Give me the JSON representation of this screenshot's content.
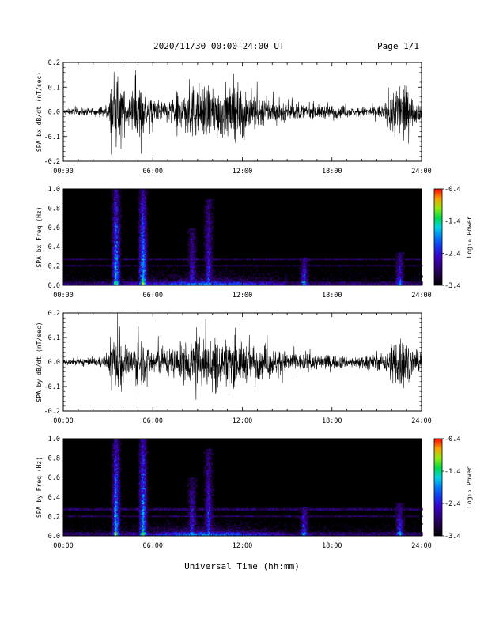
{
  "header": {
    "title": "2020/11/30  00:00–24:00 UT",
    "page": "Page 1/1"
  },
  "xaxis_label": "Universal Time (hh:mm)",
  "colors": {
    "line": "#000000",
    "background": "#000000"
  },
  "chart_data": [
    {
      "type": "line",
      "title": "",
      "ylabel": "SPA bx dB/dt (nT/sec)",
      "xlim": [
        0,
        24
      ],
      "ylim": [
        -0.2,
        0.2
      ],
      "xticks": [
        "00:00",
        "06:00",
        "12:00",
        "18:00",
        "24:00"
      ],
      "yticks": [
        "-0.2",
        "-0.1",
        "0.0",
        "0.1",
        "0.2"
      ],
      "series": [
        {
          "x": [
            0,
            1,
            2,
            3,
            3.2,
            3.8,
            4.5,
            5,
            5.6,
            7,
            8.5,
            9.5,
            10.5,
            12,
            13.5,
            15,
            16.5,
            18,
            19.5,
            21.5,
            22.3,
            22.8,
            23.3,
            24
          ],
          "amplitude": [
            0.02,
            0.025,
            0.03,
            0.04,
            0.22,
            0.22,
            0.06,
            0.22,
            0.1,
            0.08,
            0.2,
            0.2,
            0.2,
            0.2,
            0.1,
            0.06,
            0.05,
            0.05,
            0.03,
            0.05,
            0.22,
            0.22,
            0.12,
            0.05
          ]
        }
      ]
    },
    {
      "type": "heatmap",
      "title": "",
      "ylabel": "SPA bx Freq (Hz)",
      "xlim": [
        0,
        24
      ],
      "ylim": [
        0,
        1.0
      ],
      "xticks": [
        "00:00",
        "06:00",
        "12:00",
        "18:00",
        "24:00"
      ],
      "yticks": [
        "0.0",
        "0.2",
        "0.4",
        "0.6",
        "0.8",
        "1.0"
      ],
      "colorbar": {
        "label": "Log₁₀ Power",
        "min": -3.4,
        "max": -0.4,
        "ticks": [
          "-0.4",
          "-1.4",
          "-2.4",
          "-3.4"
        ]
      },
      "bursts": [
        {
          "t": 3.5,
          "fmax": 1.0,
          "power": -1.0
        },
        {
          "t": 5.3,
          "fmax": 1.0,
          "power": -0.9
        },
        {
          "t": 8.6,
          "fmax": 0.6,
          "power": -2.0
        },
        {
          "t": 9.7,
          "fmax": 0.9,
          "power": -1.9
        },
        {
          "t": 16.1,
          "fmax": 0.3,
          "power": -1.6
        },
        {
          "t": 22.5,
          "fmax": 0.35,
          "power": -1.7
        }
      ],
      "bands": [
        0.28,
        0.21
      ]
    },
    {
      "type": "line",
      "title": "",
      "ylabel": "SPA by dB/dt (nT/sec)",
      "xlim": [
        0,
        24
      ],
      "ylim": [
        -0.2,
        0.2
      ],
      "xticks": [
        "00:00",
        "06:00",
        "12:00",
        "18:00",
        "24:00"
      ],
      "yticks": [
        "-0.2",
        "-0.1",
        "0.0",
        "0.1",
        "0.2"
      ],
      "series": [
        {
          "x": [
            0,
            1,
            2,
            3,
            3.2,
            3.8,
            4.5,
            5,
            5.6,
            7,
            8.5,
            9.5,
            10.5,
            12,
            13.5,
            15,
            16.5,
            18,
            19.5,
            21.5,
            22.3,
            22.8,
            23.3,
            24
          ],
          "amplitude": [
            0.02,
            0.025,
            0.03,
            0.04,
            0.22,
            0.22,
            0.08,
            0.22,
            0.12,
            0.1,
            0.15,
            0.18,
            0.18,
            0.15,
            0.12,
            0.08,
            0.06,
            0.05,
            0.04,
            0.06,
            0.22,
            0.2,
            0.12,
            0.05
          ]
        }
      ]
    },
    {
      "type": "heatmap",
      "title": "",
      "ylabel": "SPA by Freq (Hz)",
      "xlim": [
        0,
        24
      ],
      "ylim": [
        0,
        1.0
      ],
      "xticks": [
        "00:00",
        "06:00",
        "12:00",
        "18:00",
        "24:00"
      ],
      "yticks": [
        "0.0",
        "0.2",
        "0.4",
        "0.6",
        "0.8",
        "1.0"
      ],
      "colorbar": {
        "label": "Log₁₀ Power",
        "min": -3.4,
        "max": -0.4,
        "ticks": [
          "-0.4",
          "-1.4",
          "-2.4",
          "-3.4"
        ]
      },
      "bursts": [
        {
          "t": 3.5,
          "fmax": 1.0,
          "power": -1.0
        },
        {
          "t": 5.3,
          "fmax": 1.0,
          "power": -0.9
        },
        {
          "t": 8.6,
          "fmax": 0.6,
          "power": -1.9
        },
        {
          "t": 9.7,
          "fmax": 0.9,
          "power": -1.8
        },
        {
          "t": 16.1,
          "fmax": 0.3,
          "power": -1.5
        },
        {
          "t": 22.5,
          "fmax": 0.35,
          "power": -1.6
        }
      ],
      "bands": [
        0.28,
        0.21
      ]
    }
  ]
}
